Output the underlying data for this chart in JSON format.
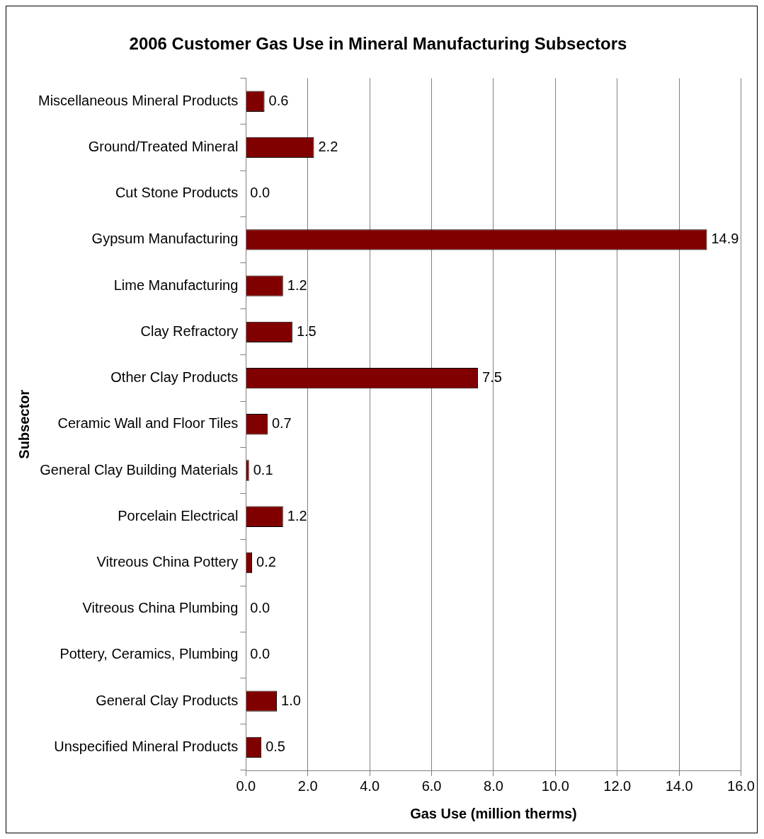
{
  "chart_data": {
    "type": "bar",
    "orientation": "horizontal",
    "title": "2006 Customer Gas Use in Mineral Manufacturing Subsectors",
    "xlabel": "Gas Use (million therms)",
    "ylabel": "Subsector",
    "categories": [
      "Miscellaneous Mineral Products",
      "Ground/Treated Mineral",
      "Cut Stone Products",
      "Gypsum Manufacturing",
      "Lime Manufacturing",
      "Clay Refractory",
      "Other Clay Products",
      "Ceramic Wall and Floor Tiles",
      "General Clay Building Materials",
      "Porcelain Electrical",
      "Vitreous China Pottery",
      "Vitreous China Plumbing",
      "Pottery, Ceramics, Plumbing",
      "General Clay Products",
      "Unspecified Mineral Products"
    ],
    "values": [
      0.6,
      2.2,
      0,
      14.9,
      1.2,
      1.5,
      7.5,
      0.7,
      0.1,
      1.2,
      0.2,
      0,
      0,
      1.0,
      0.5
    ],
    "value_labels": [
      "0.6",
      "2.2",
      "0.0",
      "14.9",
      "1.2",
      "1.5",
      "7.5",
      "0.7",
      "0.1",
      "1.2",
      "0.2",
      "0.0",
      "0.0",
      "1.0",
      "0.5"
    ],
    "color": "#800000",
    "xlim": [
      0,
      16
    ],
    "xticks": [
      {
        "value": 0,
        "label": "0.0"
      },
      {
        "value": 2,
        "label": "2.0"
      },
      {
        "value": 4,
        "label": "4.0"
      },
      {
        "value": 6,
        "label": "6.0"
      },
      {
        "value": 8,
        "label": "8.0"
      },
      {
        "value": 10,
        "label": "10.0"
      },
      {
        "value": 12,
        "label": "12.0"
      },
      {
        "value": 14,
        "label": "14.0"
      },
      {
        "value": 16,
        "label": "16.0"
      }
    ],
    "grid": "x",
    "legend": false
  }
}
